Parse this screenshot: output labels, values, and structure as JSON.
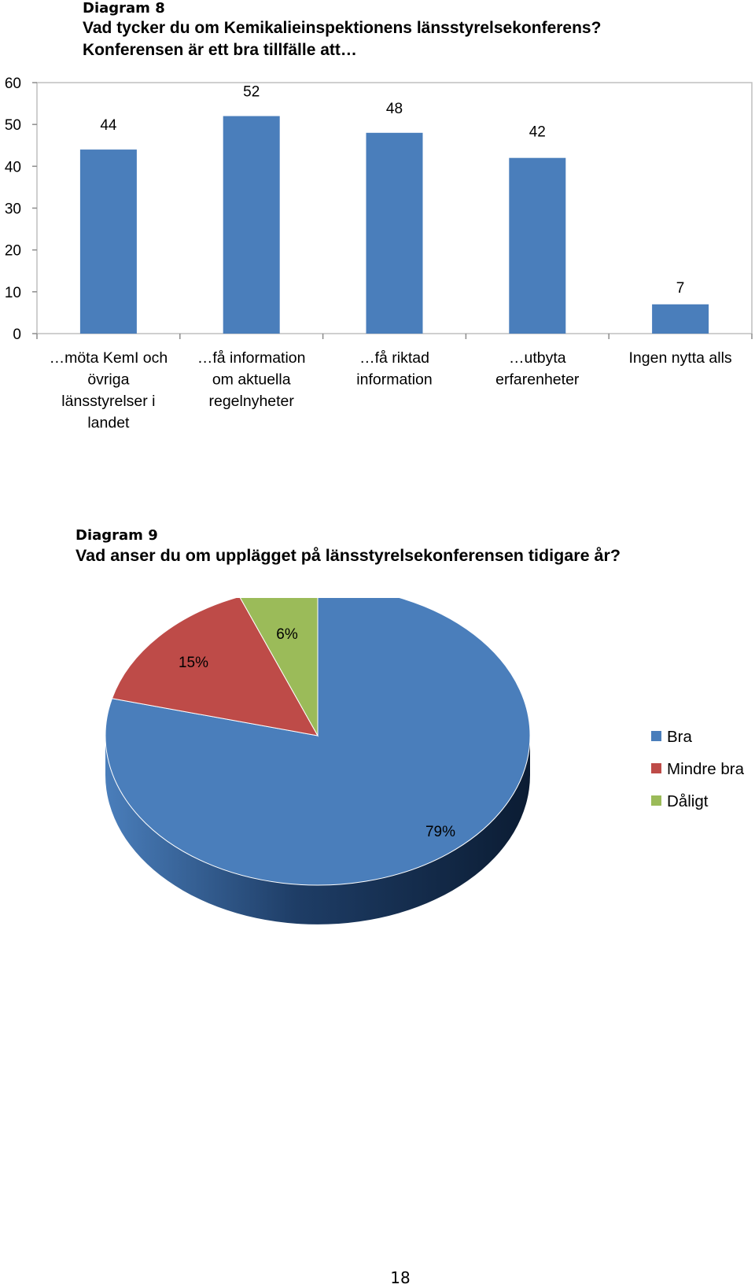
{
  "page_number": "18",
  "chart_data": [
    {
      "type": "bar",
      "label": "Diagram 8",
      "title": "Vad tycker du om Kemikalieinspektionens länsstyrelsekonferens?",
      "subtitle": "Konferensen är ett bra tillfälle att…",
      "categories": [
        [
          "…möta KemI och",
          "övriga",
          "länsstyrelser i",
          "landet"
        ],
        [
          "…få information",
          "om aktuella",
          "regelnyheter"
        ],
        [
          "…få riktad",
          "information"
        ],
        [
          "…utbyta",
          "erfarenheter"
        ],
        [
          "Ingen nytta alls"
        ]
      ],
      "values": [
        44,
        52,
        48,
        42,
        7
      ],
      "data_labels": [
        "44",
        "52",
        "48",
        "42",
        "7"
      ],
      "yticks": [
        "0",
        "10",
        "20",
        "30",
        "40",
        "50",
        "60"
      ],
      "ylim": [
        0,
        60
      ],
      "xlabel": "",
      "ylabel": "",
      "grid": false,
      "bar_color": "#4a7ebb"
    },
    {
      "type": "pie",
      "label": "Diagram 9",
      "title": "Vad anser du om upplägget på länsstyrelsekonferensen tidigare år?",
      "slices": [
        {
          "name": "Bra",
          "value": 79,
          "label": "79%",
          "color": "#4a7ebb"
        },
        {
          "name": "Mindre bra",
          "value": 15,
          "label": "15%",
          "color": "#be4b48"
        },
        {
          "name": "Dåligt",
          "value": 6,
          "label": "6%",
          "color": "#9bbb59"
        }
      ],
      "legend_position": "right",
      "three_d": true
    }
  ]
}
